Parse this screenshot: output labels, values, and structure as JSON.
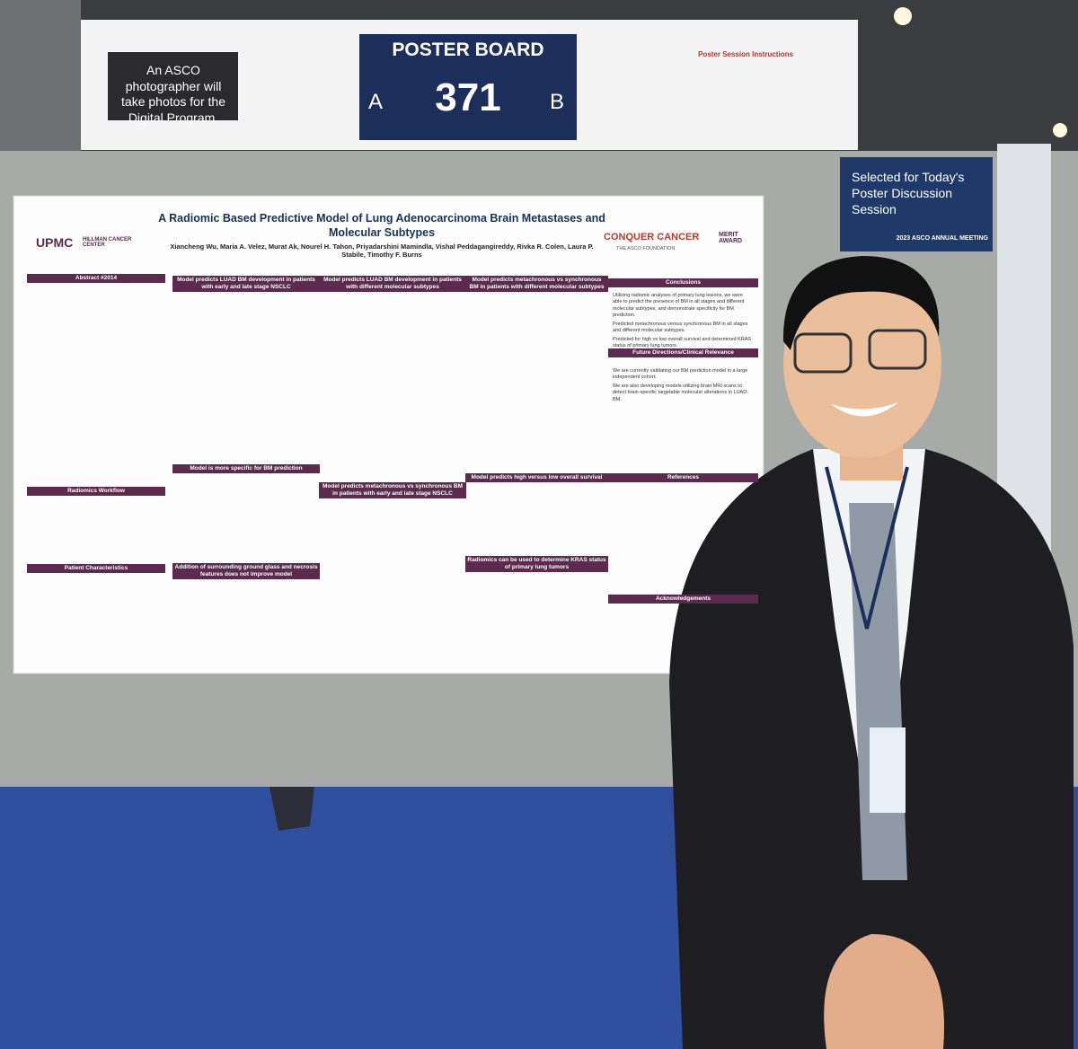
{
  "sign": {
    "photographer_note": "An ASCO photographer will take photos for the Digital Program.",
    "board_label": "POSTER BOARD",
    "side_a": "A",
    "number": "371",
    "side_b": "B",
    "instructions_title": "Poster Session Instructions"
  },
  "discussion_card": {
    "text": "Selected for Today's Poster Discussion Session",
    "meeting": "2023 ASCO ANNUAL MEETING"
  },
  "poster": {
    "logo_left": "UPMC",
    "logo_left_sub": "HILLMAN CANCER CENTER",
    "logo_right": "CONQUER CANCER",
    "logo_right_sub": "THE ASCO FOUNDATION",
    "award": "MERIT AWARD",
    "title": "A Radiomic Based Predictive Model of Lung Adenocarcinoma Brain Metastases and Molecular Subtypes",
    "authors": "Xiancheng Wu, Maria A. Velez, Murat Ak, Nourel H. Tahon, Priyadarshini Mamindla, Vishal Peddagangireddy, Rivka R. Colen, Laura P. Stabile, Timothy F. Burns",
    "columns": [
      [
        "Abstract #2014",
        "Radiomics Workflow",
        "Patient Characteristics"
      ],
      [
        "Model predicts LUAD BM development in patients with early and late stage NSCLC",
        "Model is more specific for BM prediction",
        "Addition of surrounding ground glass and necrosis features does not improve model"
      ],
      [
        "Model predicts LUAD BM development in patients with different molecular subtypes",
        "Model predicts metachronous vs synchronous BM in patients with early and late stage NSCLC"
      ],
      [
        "Model predicts metachronous vs synchronous BM in patients with different molecular subtypes",
        "Model predicts high versus low overall survival",
        "Radiomics can be used to determine KRAS status of primary lung tumors"
      ],
      [
        "Conclusions",
        "Future Directions/Clinical Relevance",
        "References",
        "Acknowledgements"
      ]
    ],
    "conclusions": [
      "Utilizing radiomic analyses of primary lung lesions, we were able to predict the presence of BM in all stages and different molecular subtypes, and demonstrate specificity for BM prediction.",
      "Predicted metachronous versus synchronous BM in all stages and different molecular subtypes.",
      "Predicted for high vs low overall survival and determined KRAS status of primary lung tumors."
    ],
    "future": [
      "We are currently validating our BM prediction model in a large independent cohort.",
      "We are also developing models utilizing brain MRI scans to detect brain-specific targetable molecular alterations in LUAD-BM."
    ]
  }
}
